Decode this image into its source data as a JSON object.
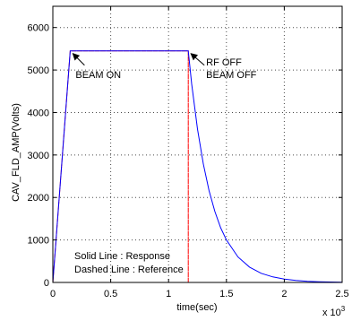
{
  "chart_data": {
    "type": "line",
    "title": "",
    "xlabel": "time(sec)",
    "ylabel": "CAV_FLD_AMP(Volts)",
    "x_multiplier_label": "x 10",
    "x_multiplier_exp": "3",
    "xlim": [
      0,
      2.5
    ],
    "ylim": [
      0,
      6500
    ],
    "xticks": [
      0,
      0.5,
      1,
      1.5,
      2,
      2.5
    ],
    "xtick_labels": [
      "0",
      "0.5",
      "1",
      "1.5",
      "2",
      "2.5"
    ],
    "yticks": [
      0,
      1000,
      2000,
      3000,
      4000,
      5000,
      6000
    ],
    "ytick_labels": [
      "0",
      "1000",
      "2000",
      "3000",
      "4000",
      "5000",
      "6000"
    ],
    "grid": true,
    "series": [
      {
        "line_style": "solid",
        "color": "#0000ff",
        "x": [
          0,
          0.15,
          1.17,
          1.2,
          1.25,
          1.3,
          1.35,
          1.4,
          1.45,
          1.5,
          1.6,
          1.7,
          1.8,
          1.9,
          2.0,
          2.1,
          2.2,
          2.3,
          2.4,
          2.5
        ],
        "y": [
          0,
          5450,
          5450,
          4670,
          3610,
          2790,
          2160,
          1670,
          1290,
          1000,
          600,
          360,
          215,
          130,
          78,
          47,
          28,
          17,
          10,
          6
        ]
      },
      {
        "line_style": "dashed",
        "color": "#ff0000",
        "x": [
          0,
          0.15,
          1.17,
          1.17,
          2.5
        ],
        "y": [
          0,
          5450,
          5450,
          0,
          0
        ]
      }
    ],
    "annotations": [
      {
        "text": "BEAM ON",
        "x": 0.15,
        "y": 5450
      },
      {
        "text": "RF OFF",
        "x": 1.17,
        "y": 5450
      },
      {
        "text": "BEAM OFF",
        "x": 1.17,
        "y": 5450
      }
    ],
    "notes": [
      "Solid Line : Response",
      "Dashed Line : Reference"
    ]
  }
}
